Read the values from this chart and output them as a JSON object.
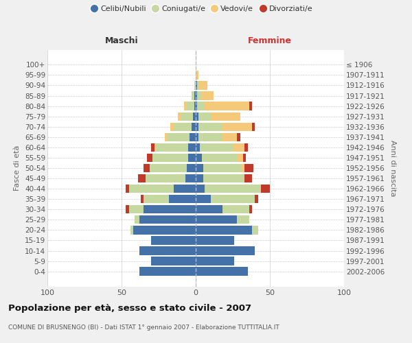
{
  "age_groups": [
    "0-4",
    "5-9",
    "10-14",
    "15-19",
    "20-24",
    "25-29",
    "30-34",
    "35-39",
    "40-44",
    "45-49",
    "50-54",
    "55-59",
    "60-64",
    "65-69",
    "70-74",
    "75-79",
    "80-84",
    "85-89",
    "90-94",
    "95-99",
    "100+"
  ],
  "birth_years": [
    "2002-2006",
    "1997-2001",
    "1992-1996",
    "1987-1991",
    "1982-1986",
    "1977-1981",
    "1972-1976",
    "1967-1971",
    "1962-1966",
    "1957-1961",
    "1952-1956",
    "1947-1951",
    "1942-1946",
    "1937-1941",
    "1932-1936",
    "1927-1931",
    "1922-1926",
    "1917-1921",
    "1912-1916",
    "1907-1911",
    "≤ 1906"
  ],
  "colors": {
    "celibi": "#4472a8",
    "coniugati": "#c5d8a0",
    "vedovi": "#f5c97a",
    "divorziati": "#c0392b"
  },
  "males": {
    "celibi": [
      38,
      30,
      38,
      30,
      42,
      38,
      35,
      18,
      15,
      7,
      6,
      5,
      5,
      4,
      3,
      2,
      1,
      1,
      0,
      0,
      0
    ],
    "coniugati": [
      0,
      0,
      0,
      0,
      2,
      3,
      10,
      17,
      30,
      27,
      25,
      24,
      22,
      15,
      12,
      8,
      5,
      2,
      1,
      0,
      0
    ],
    "vedovi": [
      0,
      0,
      0,
      0,
      0,
      0,
      0,
      0,
      0,
      0,
      0,
      0,
      1,
      2,
      2,
      2,
      2,
      0,
      0,
      0,
      0
    ],
    "divorziati": [
      0,
      0,
      0,
      0,
      0,
      0,
      2,
      2,
      2,
      5,
      4,
      4,
      2,
      0,
      0,
      0,
      0,
      0,
      0,
      0,
      0
    ]
  },
  "females": {
    "celibi": [
      35,
      26,
      40,
      26,
      38,
      28,
      18,
      10,
      6,
      5,
      5,
      4,
      3,
      2,
      2,
      2,
      1,
      1,
      1,
      0,
      0
    ],
    "coniugati": [
      0,
      0,
      0,
      0,
      4,
      8,
      18,
      30,
      38,
      28,
      26,
      24,
      22,
      16,
      16,
      8,
      5,
      3,
      1,
      0,
      0
    ],
    "vedovi": [
      0,
      0,
      0,
      0,
      0,
      0,
      0,
      0,
      0,
      0,
      2,
      4,
      8,
      10,
      20,
      20,
      30,
      8,
      6,
      2,
      0
    ],
    "divorziati": [
      0,
      0,
      0,
      0,
      0,
      0,
      2,
      2,
      6,
      5,
      6,
      2,
      2,
      2,
      2,
      0,
      2,
      0,
      0,
      0,
      0
    ]
  },
  "title": "Popolazione per età, sesso e stato civile - 2007",
  "subtitle": "COMUNE DI BRUSNENGO (BI) - Dati ISTAT 1° gennaio 2007 - Elaborazione TUTTITALIA.IT",
  "xlabel_left": "Maschi",
  "xlabel_right": "Femmine",
  "ylabel_left": "Fasce di età",
  "ylabel_right": "Anni di nascita",
  "xlim": 100,
  "bg_color": "#f0f0f0",
  "plot_bg_color": "#ffffff",
  "legend_labels": [
    "Celibi/Nubili",
    "Coniugati/e",
    "Vedovi/e",
    "Divorziati/e"
  ]
}
